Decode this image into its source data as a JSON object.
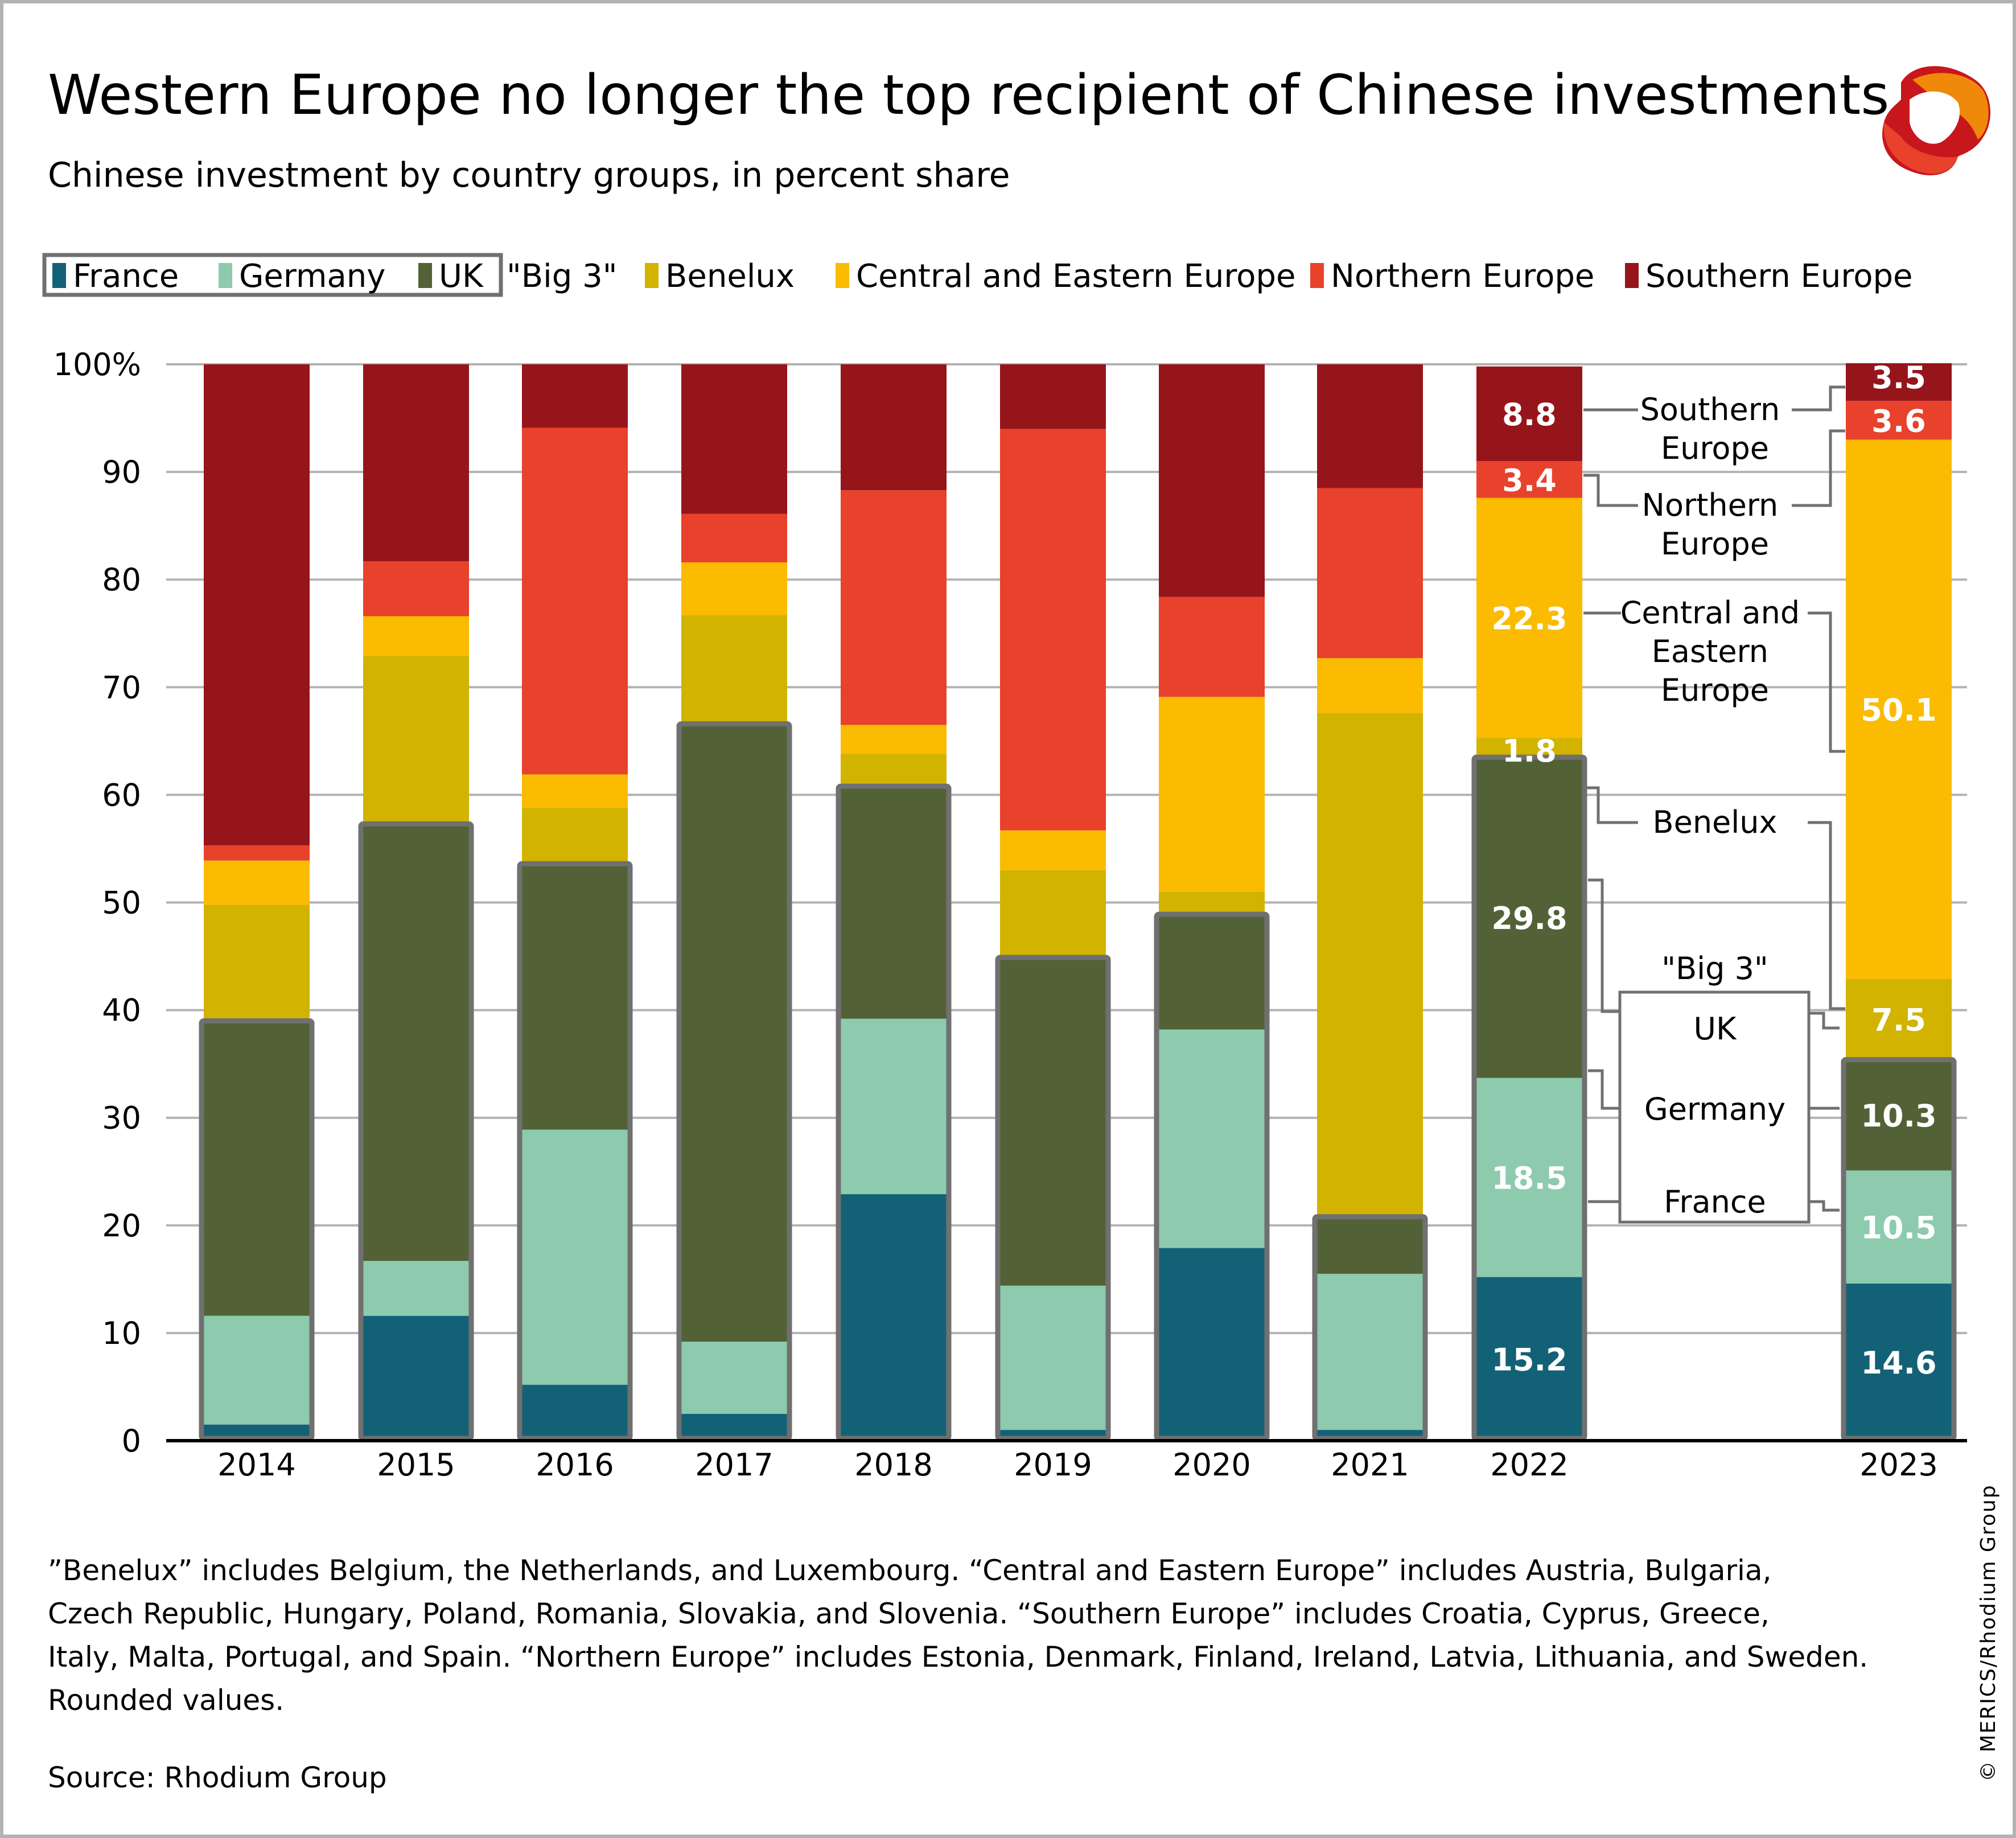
{
  "header": {
    "title": "Western Europe no longer the top recipient of Chinese investments",
    "subtitle": "Chinese investment by country groups, in percent share",
    "logo": "merics-logo-icon"
  },
  "legend": {
    "big3_label": "\"Big 3\"",
    "items": [
      {
        "name": "France",
        "color": "#136177",
        "group": "big3"
      },
      {
        "name": "Germany",
        "color": "#8dcaae",
        "group": "big3"
      },
      {
        "name": "UK",
        "color": "#526236",
        "group": "big3"
      },
      {
        "name": "Benelux",
        "color": "#d1b300",
        "group": "other"
      },
      {
        "name": "Central and Eastern Europe",
        "color": "#fabb00",
        "group": "other"
      },
      {
        "name": "Northern Europe",
        "color": "#e8412c",
        "group": "other"
      },
      {
        "name": "Southern Europe",
        "color": "#96151b",
        "group": "other"
      }
    ]
  },
  "chart_data": {
    "type": "bar",
    "stacked": true,
    "title": "Western Europe no longer the top recipient of Chinese investments",
    "subtitle": "Chinese investment by country groups, in percent share",
    "xlabel": "",
    "ylabel": "",
    "ylim": [
      0,
      100
    ],
    "y_ticks": [
      "0",
      "10",
      "20",
      "30",
      "40",
      "50",
      "60",
      "70",
      "80",
      "90",
      "100%"
    ],
    "grid": true,
    "legend_position": "top",
    "categories": [
      "2014",
      "2015",
      "2016",
      "2017",
      "2018",
      "2019",
      "2020",
      "2021",
      "2022",
      "2023"
    ],
    "series": [
      {
        "name": "France",
        "color": "#136177",
        "values": [
          1.5,
          11.6,
          5.2,
          2.5,
          22.9,
          1.0,
          17.9,
          1.0,
          15.2,
          14.6
        ]
      },
      {
        "name": "Germany",
        "color": "#8dcaae",
        "values": [
          10.1,
          5.1,
          23.7,
          6.7,
          16.3,
          13.4,
          20.3,
          14.5,
          18.5,
          10.5
        ]
      },
      {
        "name": "UK",
        "color": "#526236",
        "values": [
          27.4,
          40.6,
          24.7,
          57.4,
          21.6,
          30.5,
          10.7,
          5.3,
          29.8,
          10.3
        ]
      },
      {
        "name": "Benelux",
        "color": "#d1b300",
        "values": [
          10.8,
          15.6,
          5.2,
          10.1,
          3.0,
          8.1,
          2.1,
          46.8,
          1.8,
          7.5
        ]
      },
      {
        "name": "Central and Eastern Europe",
        "color": "#fabb00",
        "values": [
          4.1,
          3.7,
          3.1,
          4.9,
          2.7,
          3.7,
          18.1,
          5.1,
          22.3,
          50.1
        ]
      },
      {
        "name": "Northern Europe",
        "color": "#e8412c",
        "values": [
          1.4,
          5.1,
          32.2,
          4.5,
          21.8,
          37.3,
          9.3,
          15.8,
          3.4,
          3.6
        ]
      },
      {
        "name": "Southern Europe",
        "color": "#96151b",
        "values": [
          44.7,
          18.3,
          5.9,
          13.9,
          11.7,
          6.0,
          21.6,
          11.5,
          8.8,
          3.5
        ]
      }
    ],
    "data_labels": {
      "2022": {
        "France": "15.2",
        "Germany": "18.5",
        "UK": "29.8",
        "Benelux": "1.8",
        "Central and Eastern Europe": "22.3",
        "Northern Europe": "3.4",
        "Southern Europe": "8.8"
      },
      "2023": {
        "France": "14.6",
        "Germany": "10.5",
        "UK": "10.3",
        "Benelux": "7.5",
        "Central and Eastern Europe": "50.1",
        "Northern Europe": "3.6",
        "Southern Europe": "3.5"
      }
    },
    "big3_outline": true,
    "annotations": {
      "southern": [
        "Southern",
        "Europe"
      ],
      "northern": [
        "Northern",
        "Europe"
      ],
      "cee": [
        "Central and",
        "Eastern",
        "Europe"
      ],
      "benelux": [
        "Benelux"
      ],
      "big3_title": "\"Big 3\"",
      "uk": "UK",
      "germany": "Germany",
      "france": "France"
    }
  },
  "footer": {
    "note_lines": [
      "”Benelux” includes Belgium, the Netherlands, and Luxembourg. “Central and Eastern Europe” includes Austria, Bulgaria,",
      "Czech Republic, Hungary, Poland, Romania, Slovakia, and Slovenia. “Southern Europe” includes Croatia, Cyprus, Greece,",
      "Italy, Malta, Portugal, and Spain. “Northern Europe” includes Estonia, Denmark, Finland, Ireland, Latvia, Lithuania, and Sweden.",
      "Rounded values."
    ],
    "source": "Source: Rhodium Group",
    "credit": "© MERICS/Rhodium Group"
  }
}
